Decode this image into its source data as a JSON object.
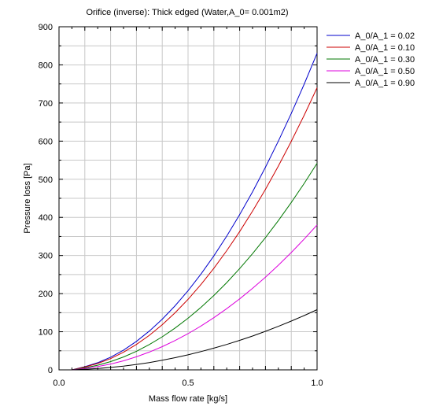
{
  "chart_data": {
    "type": "line",
    "title": "Orifice (inverse): Thick edged (Water,A_0= 0.001m2)",
    "xlabel": "Mass flow rate [kg/s]",
    "ylabel": "Pressure loss [Pa]",
    "xlim": [
      0.0,
      1.0
    ],
    "ylim": [
      0,
      900
    ],
    "x_ticks": [
      0.0,
      0.5,
      1.0
    ],
    "x_tick_labels": [
      "0.0",
      "0.5",
      "1.0"
    ],
    "y_ticks": [
      0,
      100,
      200,
      300,
      400,
      500,
      600,
      700,
      800,
      900
    ],
    "y_tick_labels": [
      "0",
      "100",
      "200",
      "300",
      "400",
      "500",
      "600",
      "700",
      "800",
      "900"
    ],
    "grid": true,
    "legend_position": "top-right outside plot",
    "x": [
      0.05,
      0.1,
      0.15,
      0.2,
      0.25,
      0.3,
      0.35,
      0.4,
      0.45,
      0.5,
      0.55,
      0.6,
      0.65,
      0.7,
      0.75,
      0.8,
      0.85,
      0.9,
      0.95,
      1.0
    ],
    "series": [
      {
        "name": "A_0/A_1 = 0.02",
        "color": "#0000cc",
        "values": [
          0,
          8.3,
          18.7,
          33.2,
          51.9,
          74.8,
          101.7,
          132.9,
          168.2,
          207.6,
          251.3,
          299.0,
          350.9,
          407.0,
          467.1,
          531.5,
          600.0,
          672.6,
          749.4,
          830.4
        ]
      },
      {
        "name": "A_0/A_1 = 0.10",
        "color": "#cc0000",
        "values": [
          0,
          7.4,
          16.7,
          29.6,
          46.3,
          66.6,
          90.7,
          118.4,
          149.9,
          185.0,
          223.9,
          266.4,
          312.7,
          362.6,
          416.3,
          473.6,
          534.6,
          599.4,
          667.8,
          740.0
        ]
      },
      {
        "name": "A_0/A_1 = 0.30",
        "color": "#007700",
        "values": [
          0,
          5.4,
          12.2,
          21.7,
          33.9,
          48.8,
          66.4,
          86.7,
          109.8,
          135.5,
          164.0,
          195.1,
          229.0,
          265.6,
          304.9,
          346.9,
          391.6,
          439.0,
          489.1,
          541.9
        ]
      },
      {
        "name": "A_0/A_1 = 0.50",
        "color": "#dd00dd",
        "values": [
          0,
          3.8,
          8.6,
          15.2,
          23.8,
          34.2,
          46.6,
          60.8,
          77.0,
          95.0,
          115.0,
          136.8,
          160.6,
          186.2,
          213.8,
          243.2,
          274.6,
          307.8,
          343.0,
          380.0
        ]
      },
      {
        "name": "A_0/A_1 = 0.90",
        "color": "#000000",
        "values": [
          0,
          1.6,
          3.6,
          6.3,
          9.9,
          14.2,
          19.3,
          25.3,
          32.0,
          39.5,
          47.8,
          56.9,
          66.7,
          77.4,
          88.8,
          101.1,
          114.1,
          127.9,
          142.5,
          157.9
        ]
      }
    ]
  }
}
